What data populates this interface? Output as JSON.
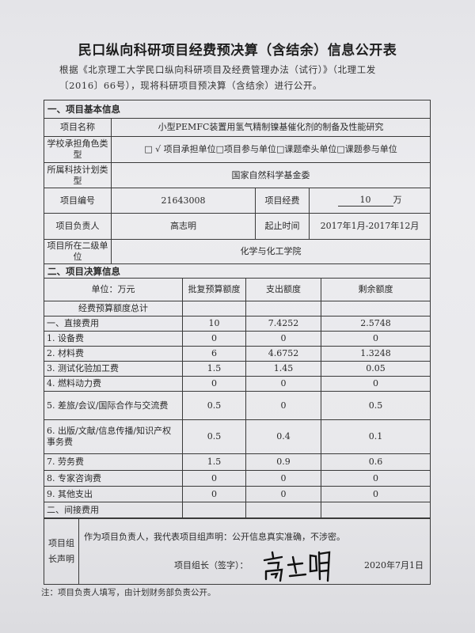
{
  "title": "民口纵向科研项目经费预决算（含结余）信息公开表",
  "intro_line1": "根据《北京理工大学民口纵向科研项目及经费管理办法（试行）》（北理工发",
  "intro_line2": "〔2016〕66号），现将科研项目预决算（含结余）进行公开。",
  "section1": {
    "heading": "一、项目基本信息",
    "name_label": "项目名称",
    "name_value": "小型PEMFC装置用氢气精制镍基催化剂的制备及性能研究",
    "role_label": "学校承担角色类型",
    "role_value": "□ √ 项目承担单位□项目参与单位□课题牵头单位□课题参与单位",
    "plan_label": "所属科技计划类型",
    "plan_value": "国家自然科学基金委",
    "number_label": "项目编号",
    "number_value": "21643008",
    "funding_label": "项目经费",
    "funding_value": "10",
    "funding_unit": "万",
    "leader_label": "项目负责人",
    "leader_value": "高志明",
    "period_label": "起止时间",
    "period_value": "2017年1月-2017年12月",
    "unit_label": "项目所在二级单位",
    "unit_value": "化学与化工学院"
  },
  "section2": {
    "heading": "二、项目决算信息",
    "columns": [
      "单位：万元",
      "批复预算额度",
      "支出额度",
      "剩余额度"
    ],
    "rows": [
      [
        "经费预算额度总计",
        "",
        "",
        ""
      ],
      [
        "一、直接费用",
        "10",
        "7.4252",
        "2.5748"
      ],
      [
        "1. 设备费",
        "0",
        "0",
        "0"
      ],
      [
        "2. 材料费",
        "6",
        "4.6752",
        "1.3248"
      ],
      [
        "3. 测试化验加工费",
        "1.5",
        "1.45",
        "0.05"
      ],
      [
        "4. 燃料动力费",
        "0",
        "0",
        "0"
      ],
      [
        "5. 差旅/会议/国际合作与交流费",
        "0.5",
        "0",
        "0.5"
      ],
      [
        "6. 出版/文献/信息传播/知识产权事务费",
        "0.5",
        "0.4",
        "0.1"
      ],
      [
        "7. 劳务费",
        "1.5",
        "0.9",
        "0.6"
      ],
      [
        "8. 专家咨询费",
        "0",
        "0",
        "0"
      ],
      [
        "9. 其他支出",
        "0",
        "0",
        "0"
      ],
      [
        "二、间接费用",
        "",
        "",
        ""
      ]
    ]
  },
  "declaration": {
    "label": "项目组长声明",
    "text": "作为项目负责人，我代表项目组声明：公开信息真实准确，不涉密。",
    "sign_label": "项目组长（签字）：",
    "signature": "高志明",
    "date": "2020年7月1日"
  },
  "note": "注：项目负责人填写，由计划财务部负责公开。"
}
